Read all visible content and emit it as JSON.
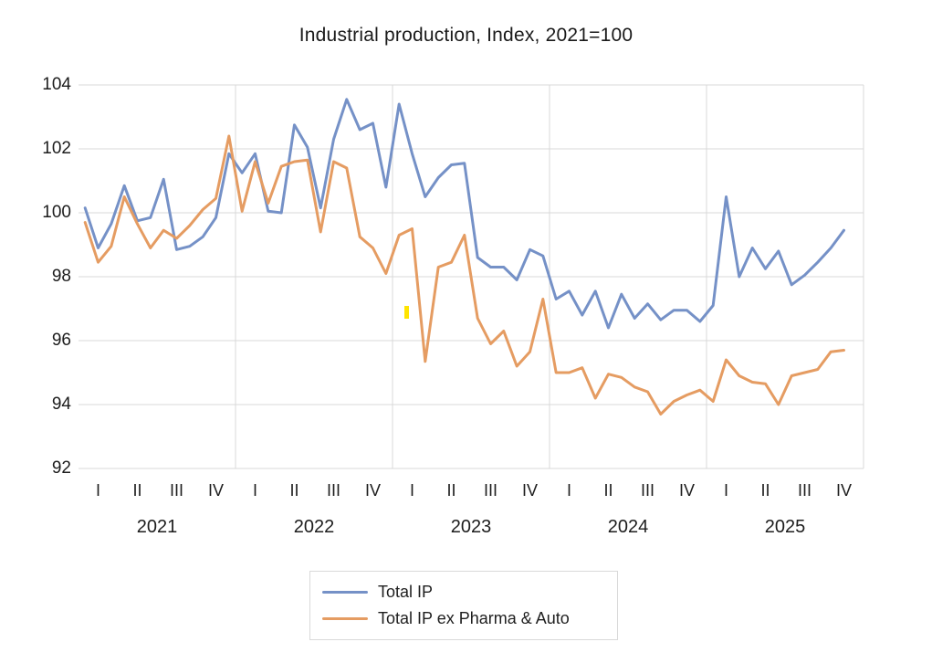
{
  "chart_data": {
    "type": "line",
    "title": "Industrial production, Index, 2021=100",
    "xlabel": "",
    "ylabel": "",
    "ylim": [
      92,
      104
    ],
    "y_ticks": [
      104,
      102,
      100,
      98,
      96,
      94,
      92
    ],
    "x_years": [
      "2021",
      "2022",
      "2023",
      "2024",
      "2025"
    ],
    "x_quarters": [
      "I",
      "II",
      "III",
      "IV"
    ],
    "months_per_year": 12,
    "total_slots": 60,
    "grid": "on",
    "gridline_color": "#D9D9D9",
    "legend_position": "bottom",
    "series": [
      {
        "name": "Total IP",
        "color": "#7591C7",
        "values": [
          100.15,
          98.9,
          99.65,
          100.85,
          99.75,
          99.85,
          101.05,
          98.85,
          98.95,
          99.25,
          99.85,
          101.85,
          101.25,
          101.85,
          100.05,
          100.0,
          102.75,
          102.05,
          100.15,
          102.3,
          103.55,
          102.6,
          102.8,
          100.8,
          103.4,
          101.85,
          100.5,
          101.1,
          101.5,
          101.55,
          98.6,
          98.3,
          98.3,
          97.9,
          98.85,
          98.65,
          97.3,
          97.55,
          96.8,
          97.55,
          96.4,
          97.45,
          96.7,
          97.15,
          96.65,
          96.95,
          96.95,
          96.6,
          97.1,
          100.5,
          98.0,
          98.9,
          98.25,
          98.8,
          97.75,
          98.05,
          98.45,
          98.9,
          99.45
        ]
      },
      {
        "name": "Total IP ex Pharma & Auto",
        "color": "#E59C62",
        "values": [
          99.7,
          98.45,
          98.95,
          100.5,
          99.65,
          98.9,
          99.45,
          99.2,
          99.6,
          100.1,
          100.45,
          102.4,
          100.05,
          101.6,
          100.3,
          101.45,
          101.6,
          101.65,
          99.4,
          101.6,
          101.4,
          99.25,
          98.9,
          98.1,
          99.3,
          99.5,
          95.35,
          98.3,
          98.45,
          99.3,
          96.7,
          95.9,
          96.3,
          95.2,
          95.65,
          97.3,
          95.0,
          95.0,
          95.15,
          94.2,
          94.95,
          94.85,
          94.55,
          94.4,
          93.7,
          94.1,
          94.3,
          94.45,
          94.1,
          95.4,
          94.9,
          94.7,
          94.65,
          94.0,
          94.9,
          95.0,
          95.1,
          95.65,
          95.7
        ]
      }
    ],
    "highlight_artifact": {
      "x": 443,
      "y": 335,
      "w": 5,
      "h": 14,
      "color": "#FFE400"
    }
  }
}
